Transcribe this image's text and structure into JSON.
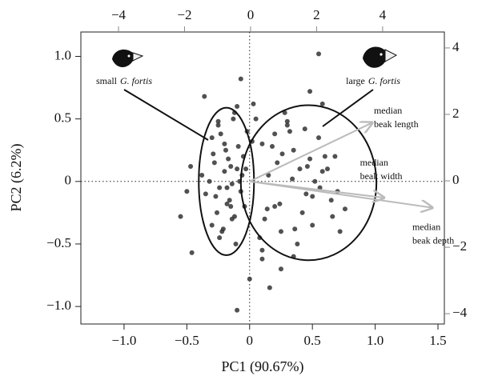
{
  "chart_data": {
    "type": "scatter",
    "xlabel": "PC1 (90.67%)",
    "ylabel": "PC2 (6.2%)",
    "xlim": [
      -1.344,
      1.551
    ],
    "ylim": [
      -1.14,
      1.195
    ],
    "xticks": [
      {
        "value": -1,
        "label": "−1.0"
      },
      {
        "value": -0.5,
        "label": "−0.5"
      },
      0,
      0.5,
      {
        "value": 1,
        "label": "1.0"
      },
      1.5
    ],
    "yticks": [
      {
        "value": -1,
        "label": "−1.0"
      },
      {
        "value": -0.5,
        "label": "−0.5"
      },
      0,
      0.5,
      {
        "value": 1,
        "label": "1.0"
      }
    ],
    "x2lim": [
      -5.14,
      5.87
    ],
    "x2ticks": [
      {
        "value": -4,
        "label": "−4"
      },
      {
        "value": -2,
        "label": "−2"
      },
      0,
      2,
      4
    ],
    "y2lim": [
      -4.31,
      4.48
    ],
    "y2ticks": [
      {
        "value": -4,
        "label": "−4"
      },
      {
        "value": -2,
        "label": "−2"
      },
      0,
      2,
      4
    ],
    "reference_lines": {
      "x": 0,
      "y": 0
    },
    "color": "#333333",
    "x": [
      -0.2,
      -0.15,
      -0.1,
      -0.25,
      -0.3,
      -0.05,
      -0.18,
      -0.12,
      -0.22,
      -0.08,
      -0.28,
      -0.35,
      -0.14,
      -0.02,
      -0.19,
      -0.26,
      -0.1,
      -0.16,
      -0.06,
      -0.3,
      -0.24,
      -0.13,
      -0.2,
      -0.04,
      -0.32,
      -0.11,
      -0.17,
      -0.27,
      -0.09,
      -0.21,
      -0.15,
      -0.07,
      -0.23,
      -0.38,
      -0.12,
      -0.29,
      -0.18,
      -0.03,
      -0.25,
      -0.14,
      0.1,
      0.2,
      0.3,
      0.4,
      0.5,
      0.6,
      0.15,
      0.25,
      0.35,
      0.45,
      0.55,
      0.65,
      0.05,
      0.12,
      0.22,
      0.32,
      0.42,
      0.52,
      0.62,
      0.08,
      0.18,
      0.28,
      0.38,
      0.48,
      0.58,
      0.7,
      0.02,
      0.14,
      0.26,
      0.36,
      0.46,
      0.56,
      0.66,
      0.2,
      0.34,
      0.44,
      0.1,
      0.3,
      0.5,
      0.24,
      -0.1,
      0.55,
      -0.55,
      -0.46,
      0.72,
      0.16,
      -0.47,
      0.76,
      0.0,
      -0.36,
      0.58,
      0.35,
      0.03,
      -0.24,
      0.68,
      0.25,
      -0.5,
      0.48,
      -0.07,
      0.1
    ],
    "y": [
      0.3,
      -0.2,
      0.1,
      0.45,
      -0.35,
      0.2,
      -0.05,
      0.55,
      -0.4,
      0.0,
      0.15,
      -0.1,
      -0.3,
      0.4,
      0.25,
      -0.25,
      0.6,
      -0.15,
      0.05,
      0.35,
      -0.45,
      0.5,
      0.08,
      -0.2,
      0.0,
      -0.5,
      0.18,
      -0.12,
      0.28,
      -0.38,
      0.12,
      -0.08,
      0.38,
      0.05,
      -0.28,
      0.22,
      -0.18,
      0.1,
      0.48,
      -0.02,
      0.3,
      -0.2,
      0.45,
      0.1,
      -0.35,
      0.2,
      0.05,
      -0.4,
      0.25,
      -0.1,
      0.35,
      -0.15,
      0.5,
      -0.3,
      0.15,
      0.4,
      -0.25,
      0.0,
      0.1,
      -0.45,
      0.28,
      0.55,
      -0.5,
      0.18,
      0.08,
      -0.08,
      0.32,
      -0.22,
      0.22,
      -0.38,
      0.12,
      -0.05,
      -0.28,
      0.38,
      0.02,
      0.42,
      -0.55,
      0.48,
      -0.12,
      -0.18,
      -1.03,
      1.02,
      -0.28,
      -0.57,
      -0.4,
      -0.85,
      0.12,
      -0.22,
      -0.78,
      0.68,
      0.62,
      -0.6,
      0.62,
      -0.05,
      0.2,
      -0.7,
      -0.08,
      0.72,
      0.82,
      -0.62
    ],
    "ellipses": [
      {
        "cx": -0.185,
        "cy": 0,
        "rx": 0.22,
        "ry": 0.59
      },
      {
        "cx": 0.47,
        "cy": -0.01,
        "rx": 0.54,
        "ry": 0.62
      }
    ],
    "groups": [
      {
        "prefix": "small",
        "species": "G. fortis"
      },
      {
        "prefix": "large",
        "species": "G. fortis"
      }
    ],
    "arrows": [
      {
        "lines": [
          "median",
          "beak length"
        ],
        "x": 0.977,
        "y": 0.47
      },
      {
        "lines": [
          "median",
          "beak width"
        ],
        "x": 1.07,
        "y": -0.13
      },
      {
        "lines": [
          "median",
          "beak depth"
        ],
        "x": 1.455,
        "y": -0.21
      }
    ],
    "arrow_color": "#bbbbbb"
  }
}
